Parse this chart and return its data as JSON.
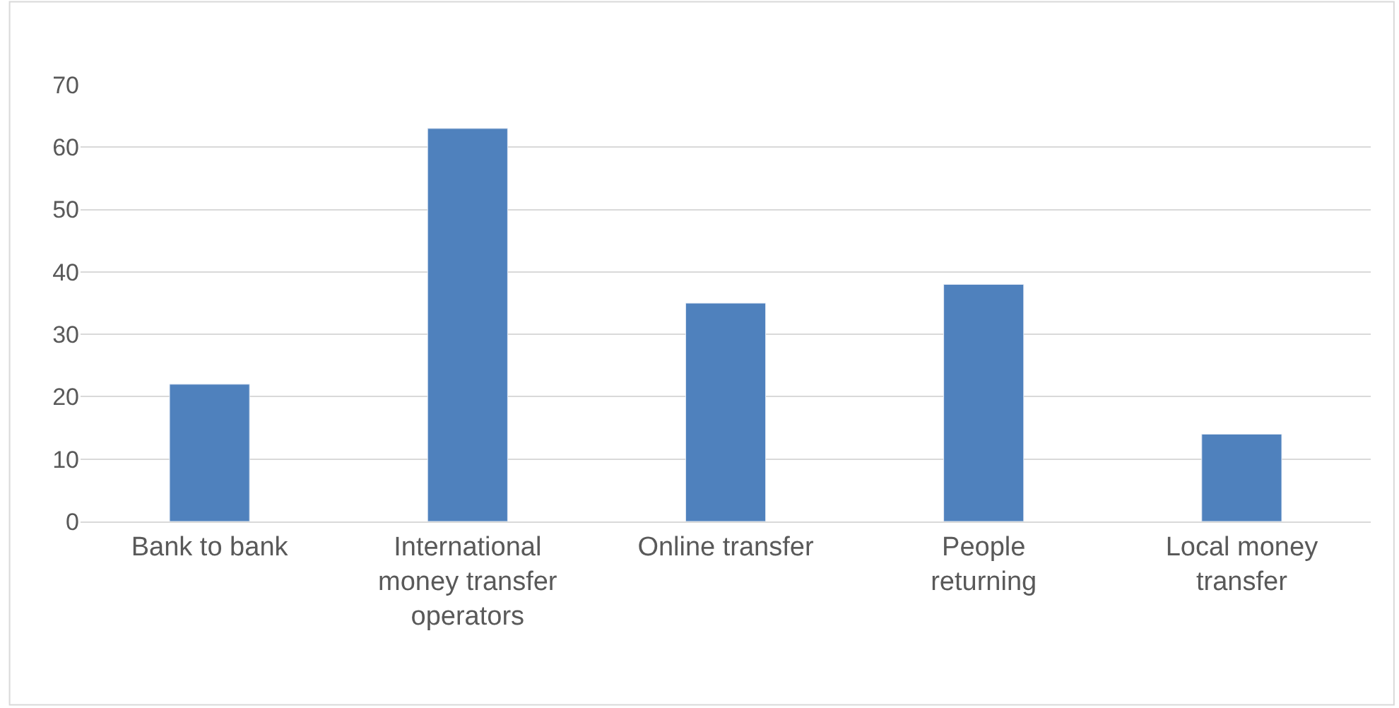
{
  "chart_data": {
    "type": "bar",
    "categories": [
      "Bank to bank",
      "International money transfer operators",
      "Online transfer",
      "People returning",
      "Local money transfer"
    ],
    "values": [
      22,
      63,
      35,
      38,
      14
    ],
    "color": "#4f81bd",
    "ylim": [
      0,
      70
    ],
    "yticks": [
      0,
      10,
      20,
      30,
      40,
      50,
      60,
      70
    ],
    "grid": "y",
    "legend": false
  }
}
